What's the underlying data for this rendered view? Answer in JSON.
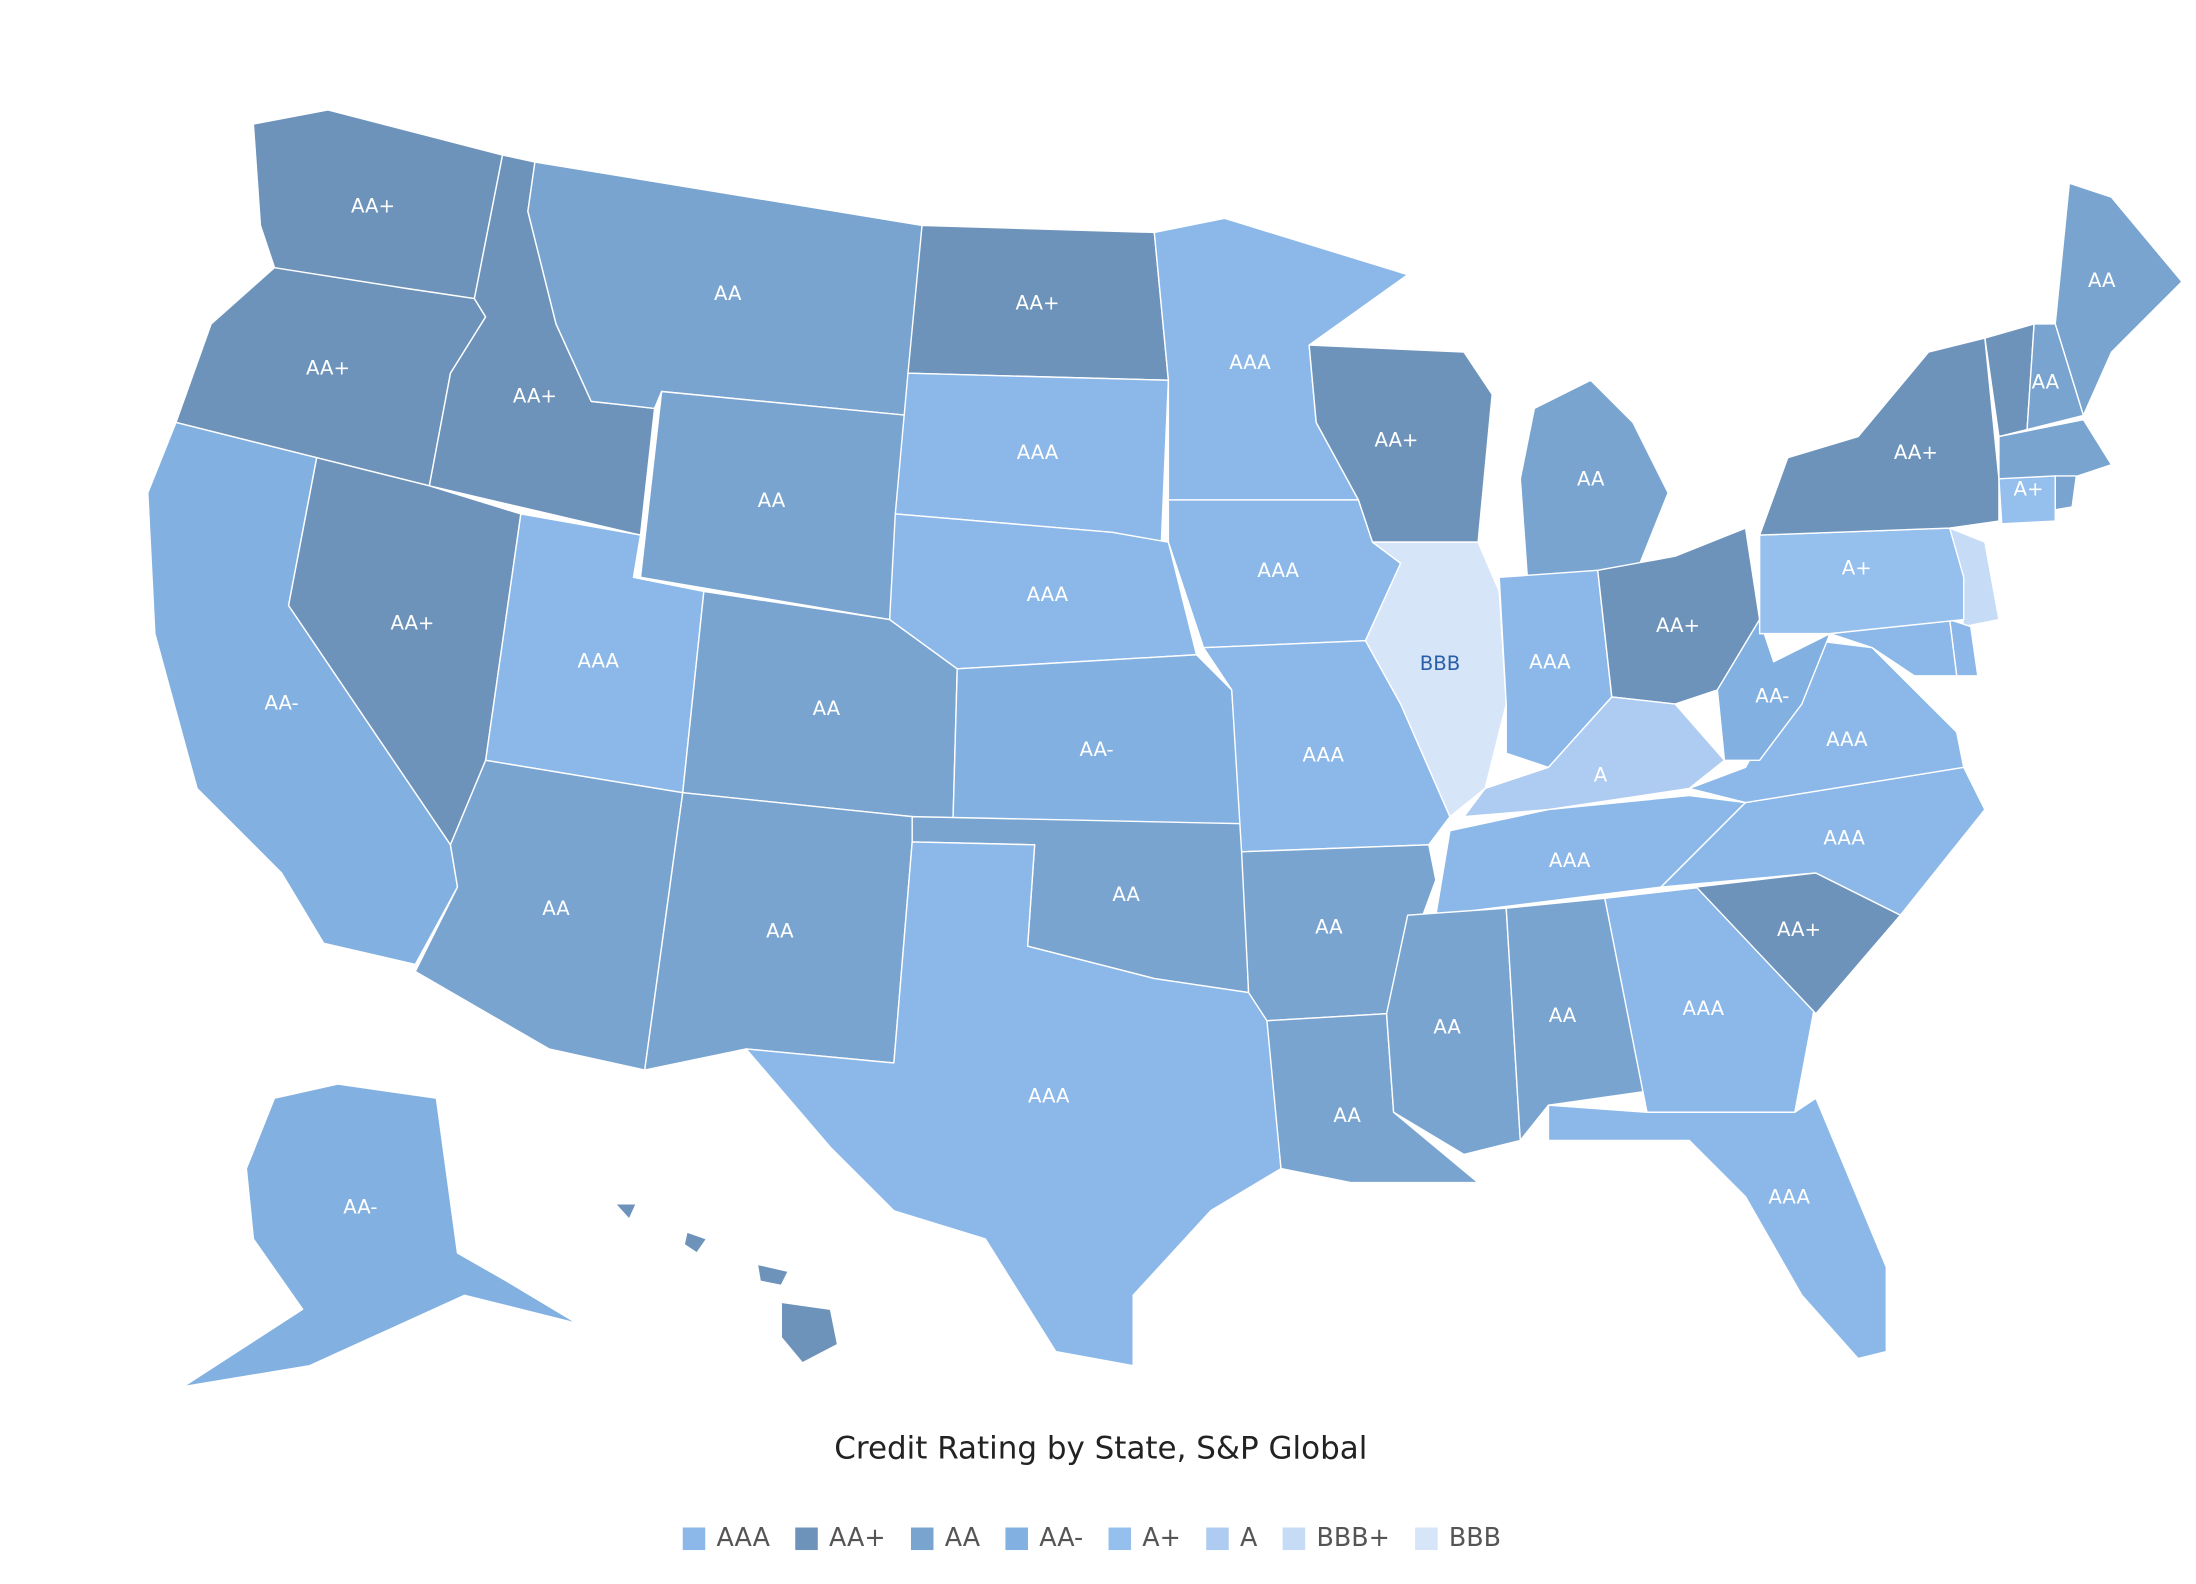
{
  "title": "Credit Rating by State, S&P Global",
  "legend": [
    {
      "label": "AAA",
      "color": "#8bb8e8",
      "label_color": "#ffffff"
    },
    {
      "label": "AA+",
      "color": "#6d93bb",
      "label_color": "#ffffff"
    },
    {
      "label": "AA",
      "color": "#79a4d0",
      "label_color": "#ffffff"
    },
    {
      "label": "AA-",
      "color": "#82b0e1",
      "label_color": "#ffffff"
    },
    {
      "label": "A+",
      "color": "#95bfec",
      "label_color": "#ffffff"
    },
    {
      "label": "A",
      "color": "#aecbf1",
      "label_color": "#ffffff"
    },
    {
      "label": "BBB+",
      "color": "#c6dbf5",
      "label_color": "#ffffff"
    },
    {
      "label": "BBB",
      "color": "#d6e5f8",
      "label_color": "#2a5ea8"
    }
  ],
  "regions": [
    {
      "label": "AA+"
    },
    {
      "label": "AA+"
    },
    {
      "label": "AA-"
    },
    {
      "label": "AA+"
    },
    {
      "label": "AA+"
    },
    {
      "label": "AA"
    },
    {
      "label": "AA"
    },
    {
      "label": "AAA"
    },
    {
      "label": "AA"
    },
    {
      "label": "AA"
    },
    {
      "label": "AA"
    },
    {
      "label": "AA+"
    },
    {
      "label": "AAA"
    },
    {
      "label": "AAA"
    },
    {
      "label": "AA-"
    },
    {
      "label": "AA"
    },
    {
      "label": "AAA"
    },
    {
      "label": "AAA"
    },
    {
      "label": "AAA"
    },
    {
      "label": "AAA"
    },
    {
      "label": "AA"
    },
    {
      "label": "AA"
    },
    {
      "label": "AA+"
    },
    {
      "label": "BBB"
    },
    {
      "label": "AA"
    },
    {
      "label": "AAA"
    },
    {
      "label": "AA+"
    },
    {
      "label": "A"
    },
    {
      "label": "AAA"
    },
    {
      "label": "AA"
    },
    {
      "label": "AA"
    },
    {
      "label": "AAA"
    },
    {
      "label": "AAA"
    },
    {
      "label": "AA+"
    },
    {
      "label": "AAA"
    },
    {
      "label": "AAA"
    },
    {
      "label": "AA-"
    },
    {
      "label": "A+"
    },
    {
      "label": "AA+"
    },
    {
      "label": "AA"
    },
    {
      "label": "AA"
    },
    {
      "label": "A+"
    },
    {
      "label": "AA-"
    }
  ]
}
